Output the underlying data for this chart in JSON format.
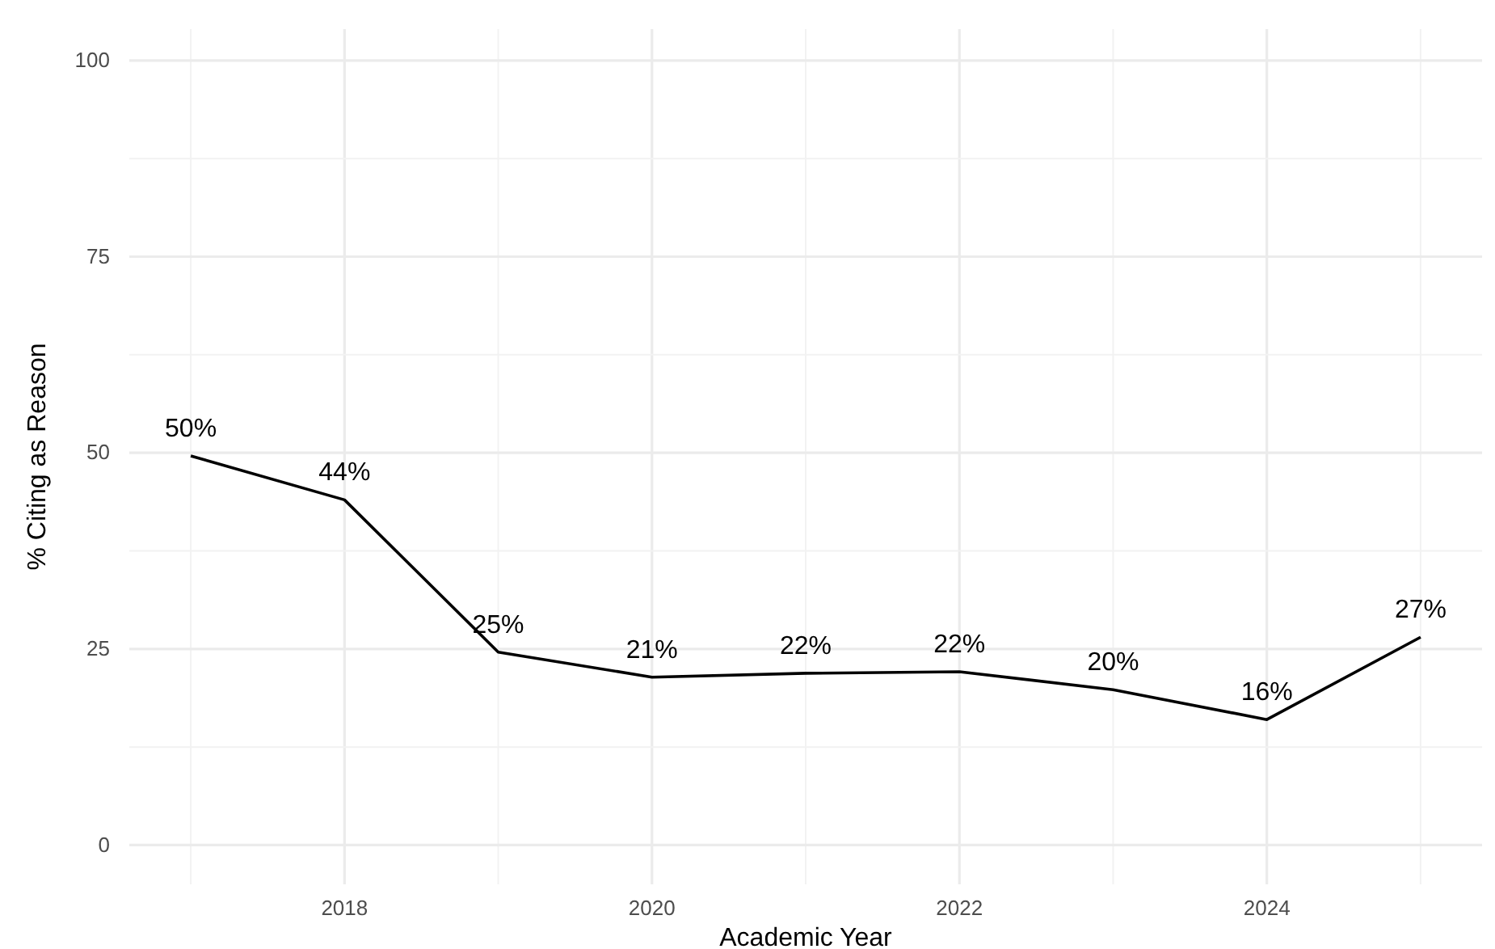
{
  "chart_data": {
    "type": "line",
    "xlabel": "Academic Year",
    "ylabel": "% Citing as Reason",
    "x": [
      2017,
      2018,
      2019,
      2020,
      2021,
      2022,
      2023,
      2024,
      2025
    ],
    "series": [
      {
        "color": "#000000",
        "values": [
          49.6,
          44,
          24.6,
          21.4,
          21.9,
          22.1,
          19.8,
          16,
          26.5
        ],
        "value_labels": [
          "50%",
          "44%",
          "25%",
          "21%",
          "22%",
          "22%",
          "20%",
          "16%",
          "27%"
        ]
      }
    ],
    "xlim": [
      2016.6,
      2025.4
    ],
    "xticks": [
      2018,
      2020,
      2022,
      2024
    ],
    "ylim": [
      -5,
      104
    ],
    "yticks": [
      0,
      25,
      50,
      75,
      100
    ],
    "grid": true
  }
}
